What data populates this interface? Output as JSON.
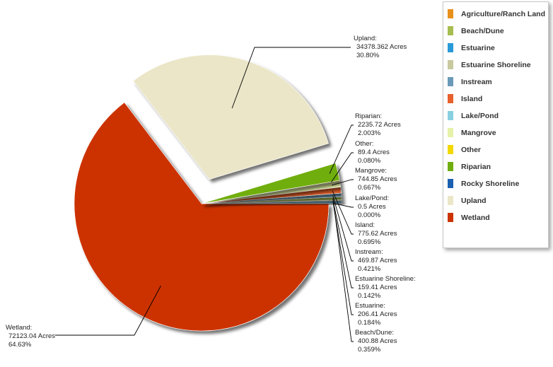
{
  "chart_data": {
    "type": "pie",
    "unit": "Acres",
    "slices": [
      {
        "name": "Agriculture/Ranch Land",
        "value": null,
        "percent": null,
        "color": "#e8901c",
        "label_lines": []
      },
      {
        "name": "Beach/Dune",
        "value": 400.88,
        "percent": 0.359,
        "color": "#a6bd50",
        "label_lines": [
          "Beach/Dune:",
          "400.88 Acres",
          "0.359%"
        ]
      },
      {
        "name": "Estuarine",
        "value": 206.41,
        "percent": 0.184,
        "color": "#2a9ad8",
        "label_lines": [
          "Estuarine:",
          "206.41 Acres",
          "0.184%"
        ]
      },
      {
        "name": "Estuarine Shoreline",
        "value": 159.41,
        "percent": 0.142,
        "color": "#c9c9a0",
        "label_lines": [
          "Estuarine Shoreline:",
          "159.41 Acres",
          "0.142%"
        ]
      },
      {
        "name": "Instream",
        "value": 469.87,
        "percent": 0.421,
        "color": "#6a9ab8",
        "label_lines": [
          "Instream:",
          "469.87 Acres",
          "0.421%"
        ]
      },
      {
        "name": "Island",
        "value": 775.62,
        "percent": 0.695,
        "color": "#e8602c",
        "label_lines": [
          "Island:",
          "775.62 Acres",
          "0.695%"
        ]
      },
      {
        "name": "Lake/Pond",
        "value": 0.5,
        "percent": 0.0,
        "color": "#88d0e0",
        "label_lines": [
          "Lake/Pond:",
          "0.5 Acres",
          "0.000%"
        ]
      },
      {
        "name": "Mangrove",
        "value": 744.85,
        "percent": 0.667,
        "color": "#e6f2a8",
        "label_lines": [
          "Mangrove:",
          "744.85 Acres",
          "0.667%"
        ]
      },
      {
        "name": "Other",
        "value": 89.4,
        "percent": 0.08,
        "color": "#f2d800",
        "label_lines": [
          "Other:",
          "89.4 Acres",
          "0.080%"
        ]
      },
      {
        "name": "Riparian",
        "value": 2235.72,
        "percent": 2.003,
        "color": "#70ae10",
        "label_lines": [
          "Riparian:",
          "2235.72 Acres",
          "2.003%"
        ]
      },
      {
        "name": "Rocky Shoreline",
        "value": null,
        "percent": null,
        "color": "#1a5fb0",
        "label_lines": []
      },
      {
        "name": "Upland",
        "value": 34378.362,
        "percent": 30.8,
        "color": "#ebe6c8",
        "label_lines": [
          "Upland:",
          "34378.362 Acres",
          "30.80%"
        ]
      },
      {
        "name": "Wetland",
        "value": 72123.04,
        "percent": 64.63,
        "color": "#cc3300",
        "label_lines": [
          "Wetland:",
          "72123.04 Acres",
          "64.63%"
        ]
      }
    ],
    "exploded": [
      "Upland",
      "Wetland"
    ],
    "legend_position": "top-right"
  },
  "legend": {
    "items": [
      {
        "label": "Agriculture/Ranch Land",
        "color": "#e8901c"
      },
      {
        "label": "Beach/Dune",
        "color": "#a6bd50"
      },
      {
        "label": "Estuarine",
        "color": "#2a9ad8"
      },
      {
        "label": "Estuarine Shoreline",
        "color": "#c9c9a0"
      },
      {
        "label": "Instream",
        "color": "#6a9ab8"
      },
      {
        "label": "Island",
        "color": "#e8602c"
      },
      {
        "label": "Lake/Pond",
        "color": "#88d0e0"
      },
      {
        "label": "Mangrove",
        "color": "#e6f2a8"
      },
      {
        "label": "Other",
        "color": "#f2d800"
      },
      {
        "label": "Riparian",
        "color": "#70ae10"
      },
      {
        "label": "Rocky Shoreline",
        "color": "#1a5fb0"
      },
      {
        "label": "Upland",
        "color": "#ebe6c8"
      },
      {
        "label": "Wetland",
        "color": "#cc3300"
      }
    ]
  }
}
